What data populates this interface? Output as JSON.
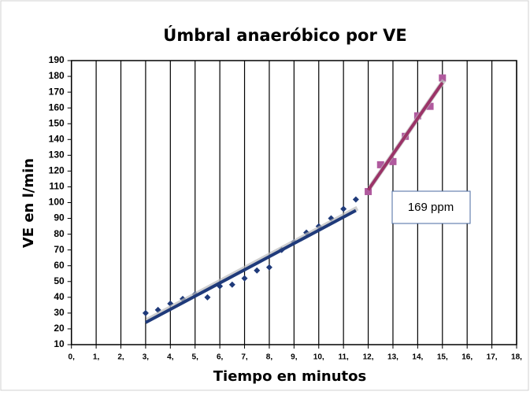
{
  "chart_data": {
    "type": "scatter",
    "title": "Úmbral anaeróbico por VE",
    "x_label": "Tiempo en minutos",
    "y_label": "VE en l/min",
    "annotation": "169 ppm",
    "xlim": [
      0,
      18
    ],
    "ylim": [
      10,
      190
    ],
    "xticks": [
      {
        "value": 0,
        "label": "0,"
      },
      {
        "value": 1,
        "label": "1,"
      },
      {
        "value": 2,
        "label": "2,"
      },
      {
        "value": 3,
        "label": "3,"
      },
      {
        "value": 4,
        "label": "4,"
      },
      {
        "value": 5,
        "label": "5,"
      },
      {
        "value": 6,
        "label": "6,"
      },
      {
        "value": 7,
        "label": "7,"
      },
      {
        "value": 8,
        "label": "8,"
      },
      {
        "value": 9,
        "label": "9,"
      },
      {
        "value": 10,
        "label": "10,"
      },
      {
        "value": 11,
        "label": "11,"
      },
      {
        "value": 12,
        "label": "12,"
      },
      {
        "value": 13,
        "label": "13,"
      },
      {
        "value": 14,
        "label": "14,"
      },
      {
        "value": 15,
        "label": "15,"
      },
      {
        "value": 16,
        "label": "16,"
      },
      {
        "value": 17,
        "label": "17,"
      },
      {
        "value": 18,
        "label": "18,"
      }
    ],
    "yticks": [
      10,
      20,
      30,
      40,
      50,
      60,
      70,
      80,
      90,
      100,
      110,
      120,
      130,
      140,
      150,
      160,
      170,
      180,
      190
    ],
    "grid": "x",
    "series": [
      {
        "marker": "diamond",
        "color": "#1f3a7a",
        "x": [
          3,
          3.5,
          4,
          4.5,
          5,
          5.5,
          6,
          6.5,
          7,
          7.5,
          8,
          8.5,
          9,
          9.5,
          10,
          10.5,
          11,
          11.5
        ],
        "values": [
          30,
          32,
          36,
          39,
          42,
          40,
          47,
          48,
          52,
          57,
          59,
          70,
          75,
          81,
          85,
          90,
          96,
          102
        ]
      },
      {
        "marker": "square",
        "color": "#b05a9e",
        "x": [
          12,
          12.5,
          13,
          13.5,
          14,
          14.5,
          15
        ],
        "values": [
          107,
          124,
          126,
          142,
          155,
          161,
          179
        ]
      },
      {
        "marker": "line",
        "color": "#1f3a7a",
        "x": [
          3,
          11.5
        ],
        "values": [
          24,
          95
        ]
      },
      {
        "marker": "line",
        "color": "#9b3468",
        "x": [
          12,
          15
        ],
        "values": [
          108,
          176
        ]
      }
    ]
  }
}
